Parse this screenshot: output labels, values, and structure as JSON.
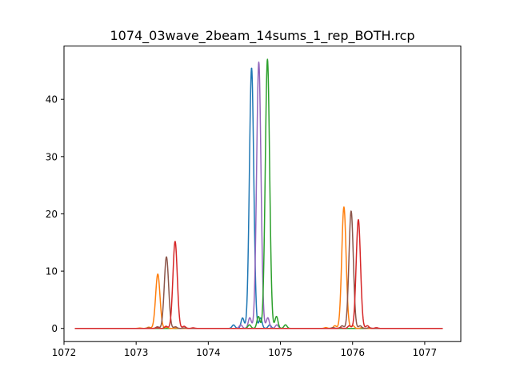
{
  "chart_data": {
    "type": "line",
    "title": "1074_03wave_2beam_14sums_1_rep_BOTH.rcp",
    "xlabel": "",
    "ylabel": "",
    "xlim": [
      1072.0,
      1077.5
    ],
    "ylim": [
      -2.3,
      49.3
    ],
    "x_ticks": [
      1072,
      1073,
      1074,
      1075,
      1076,
      1077
    ],
    "y_ticks": [
      0,
      10,
      20,
      30,
      40
    ],
    "x_tick_labels": [
      "1072",
      "1073",
      "1074",
      "1075",
      "1076",
      "1077"
    ],
    "y_tick_labels": [
      "0",
      "10",
      "20",
      "30",
      "40"
    ],
    "x_range": [
      1072.15,
      1077.25
    ],
    "grid": false,
    "legend": "none",
    "peak_width": 0.03,
    "sidelobe_spacing": 0.125,
    "series": [
      {
        "color": "#1f77b4",
        "peaks": [
          [
            1074.6,
            45.5
          ]
        ],
        "sidelobes": [
          1.8,
          0.6
        ]
      },
      {
        "color": "#9467bd",
        "peaks": [
          [
            1074.7,
            46.5
          ]
        ],
        "sidelobes": [
          1.8,
          0.6
        ]
      },
      {
        "color": "#2ca02c",
        "peaks": [
          [
            1074.82,
            47.0
          ]
        ],
        "sidelobes": [
          2.0,
          0.6
        ]
      },
      {
        "color": "#ff7f0e",
        "peaks": [
          [
            1073.3,
            9.5
          ],
          [
            1075.88,
            21.2
          ]
        ],
        "sidelobes": [
          1.0,
          0.3
        ]
      },
      {
        "color": "#8c564b",
        "peaks": [
          [
            1073.42,
            12.5
          ],
          [
            1075.98,
            20.5
          ]
        ],
        "sidelobes": [
          1.0,
          0.3
        ]
      },
      {
        "color": "#d62728",
        "peaks": [
          [
            1073.54,
            15.2
          ],
          [
            1076.08,
            19.0
          ]
        ],
        "sidelobes": [
          1.1,
          0.3
        ]
      }
    ]
  }
}
